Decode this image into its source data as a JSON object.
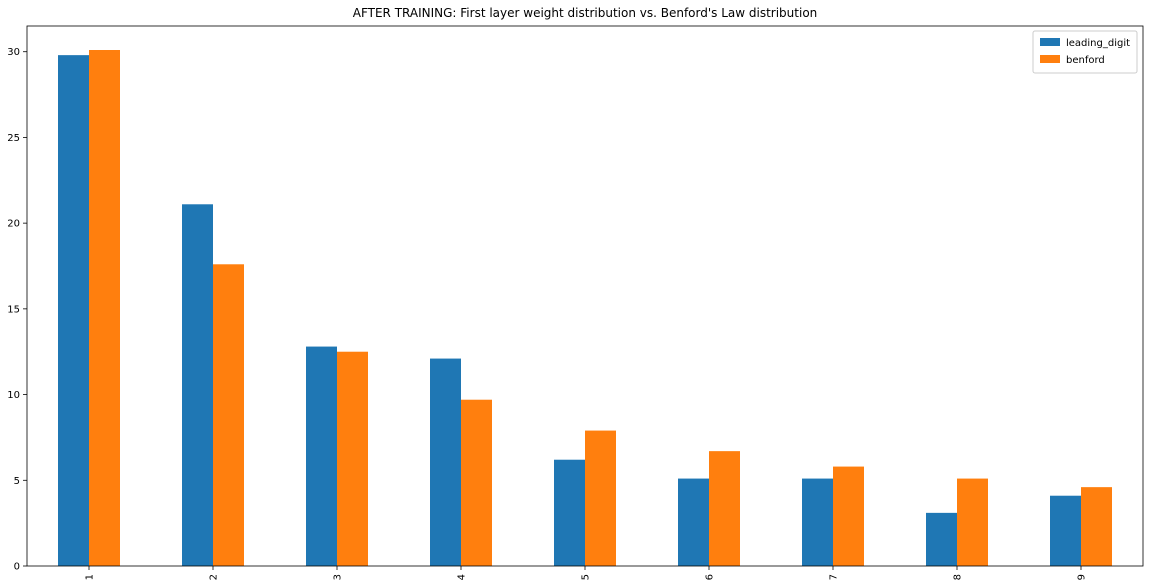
{
  "chart_data": {
    "type": "bar",
    "title": "AFTER TRAINING: First layer weight distribution vs. Benford's Law distribution",
    "xlabel": "",
    "ylabel": "",
    "categories": [
      "1",
      "2",
      "3",
      "4",
      "5",
      "6",
      "7",
      "8",
      "9"
    ],
    "series": [
      {
        "name": "leading_digit",
        "color": "#1f77b4",
        "values": [
          29.8,
          21.1,
          12.8,
          12.1,
          6.2,
          5.1,
          5.1,
          3.1,
          4.1
        ]
      },
      {
        "name": "benford",
        "color": "#ff7f0e",
        "values": [
          30.1,
          17.6,
          12.5,
          9.7,
          7.9,
          6.7,
          5.8,
          5.1,
          4.6
        ]
      }
    ],
    "ylim": [
      0,
      31.5
    ],
    "yticks": [
      "0",
      "5",
      "10",
      "15",
      "20",
      "25",
      "30"
    ],
    "xtick_rotation": "vertical",
    "grid": false,
    "legend_position": "top-right"
  }
}
